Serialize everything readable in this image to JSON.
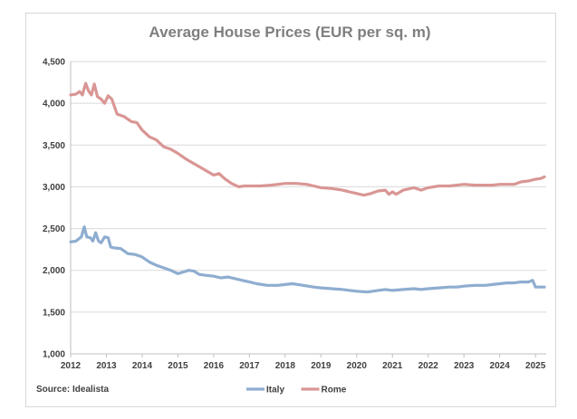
{
  "chart_data": {
    "type": "line",
    "title": "Average House Prices (EUR per sq. m)",
    "source": "Source: Idealista",
    "xlabel": "",
    "ylabel": "",
    "xlim": [
      2012,
      2025.3
    ],
    "ylim": [
      1000,
      4500
    ],
    "y_ticks": [
      1000,
      1500,
      2000,
      2500,
      3000,
      3500,
      4000,
      4500
    ],
    "y_tick_labels": [
      "1,000",
      "1,500",
      "2,000",
      "2,500",
      "3,000",
      "3,500",
      "4,000",
      "4,500"
    ],
    "x_ticks": [
      2012,
      2013,
      2014,
      2015,
      2016,
      2017,
      2018,
      2019,
      2020,
      2021,
      2022,
      2023,
      2024,
      2025
    ],
    "x_tick_labels": [
      "2012",
      "2013",
      "2014",
      "2015",
      "2016",
      "2017",
      "2018",
      "2019",
      "2020",
      "2021",
      "2022",
      "2023",
      "2024",
      "2025"
    ],
    "grid": "horizontal",
    "legend_position": "bottom",
    "series": [
      {
        "name": "Italy",
        "color": "#8eadd0",
        "x": [
          2012.0,
          2012.15,
          2012.3,
          2012.38,
          2012.45,
          2012.55,
          2012.62,
          2012.7,
          2012.78,
          2012.85,
          2012.95,
          2013.05,
          2013.12,
          2013.2,
          2013.4,
          2013.6,
          2013.8,
          2014.0,
          2014.2,
          2014.4,
          2014.6,
          2014.8,
          2015.0,
          2015.15,
          2015.3,
          2015.45,
          2015.6,
          2015.8,
          2016.0,
          2016.2,
          2016.4,
          2016.6,
          2016.8,
          2017.0,
          2017.2,
          2017.5,
          2017.8,
          2018.0,
          2018.2,
          2018.5,
          2018.8,
          2019.0,
          2019.3,
          2019.6,
          2019.8,
          2020.0,
          2020.3,
          2020.6,
          2020.8,
          2021.0,
          2021.3,
          2021.6,
          2021.8,
          2022.0,
          2022.3,
          2022.6,
          2022.8,
          2023.0,
          2023.3,
          2023.6,
          2023.8,
          2024.0,
          2024.2,
          2024.4,
          2024.6,
          2024.8,
          2024.92,
          2025.0,
          2025.1,
          2025.25
        ],
        "values": [
          2340,
          2350,
          2400,
          2520,
          2400,
          2390,
          2350,
          2450,
          2350,
          2330,
          2400,
          2390,
          2280,
          2270,
          2260,
          2200,
          2190,
          2160,
          2100,
          2060,
          2030,
          2000,
          1960,
          1980,
          2000,
          1990,
          1950,
          1940,
          1930,
          1910,
          1920,
          1900,
          1880,
          1860,
          1840,
          1820,
          1820,
          1830,
          1840,
          1820,
          1800,
          1790,
          1780,
          1770,
          1760,
          1750,
          1740,
          1760,
          1770,
          1760,
          1770,
          1780,
          1770,
          1780,
          1790,
          1800,
          1800,
          1810,
          1820,
          1820,
          1830,
          1840,
          1850,
          1850,
          1860,
          1860,
          1880,
          1800,
          1800,
          1800
        ]
      },
      {
        "name": "Rome",
        "color": "#d99694",
        "x": [
          2012.0,
          2012.15,
          2012.25,
          2012.33,
          2012.42,
          2012.5,
          2012.58,
          2012.66,
          2012.75,
          2012.85,
          2012.95,
          2013.05,
          2013.15,
          2013.3,
          2013.5,
          2013.7,
          2013.85,
          2014.0,
          2014.2,
          2014.4,
          2014.6,
          2014.8,
          2015.0,
          2015.2,
          2015.4,
          2015.6,
          2015.8,
          2016.0,
          2016.15,
          2016.3,
          2016.5,
          2016.7,
          2016.85,
          2017.0,
          2017.3,
          2017.6,
          2017.8,
          2018.0,
          2018.3,
          2018.6,
          2018.8,
          2019.0,
          2019.3,
          2019.6,
          2019.8,
          2020.0,
          2020.2,
          2020.4,
          2020.6,
          2020.8,
          2020.9,
          2021.0,
          2021.1,
          2021.3,
          2021.6,
          2021.8,
          2022.0,
          2022.3,
          2022.6,
          2022.8,
          2023.0,
          2023.3,
          2023.6,
          2023.8,
          2024.0,
          2024.2,
          2024.4,
          2024.6,
          2024.8,
          2025.0,
          2025.15,
          2025.25
        ],
        "values": [
          4100,
          4110,
          4140,
          4100,
          4240,
          4150,
          4100,
          4230,
          4080,
          4050,
          4000,
          4090,
          4050,
          3870,
          3840,
          3780,
          3770,
          3680,
          3600,
          3560,
          3480,
          3450,
          3400,
          3340,
          3290,
          3240,
          3190,
          3140,
          3160,
          3100,
          3040,
          3000,
          3010,
          3010,
          3010,
          3020,
          3030,
          3040,
          3040,
          3030,
          3010,
          2990,
          2980,
          2960,
          2940,
          2920,
          2900,
          2920,
          2950,
          2960,
          2910,
          2940,
          2910,
          2960,
          2990,
          2960,
          2990,
          3010,
          3010,
          3020,
          3030,
          3020,
          3020,
          3020,
          3030,
          3030,
          3030,
          3060,
          3070,
          3090,
          3100,
          3120
        ]
      }
    ]
  }
}
